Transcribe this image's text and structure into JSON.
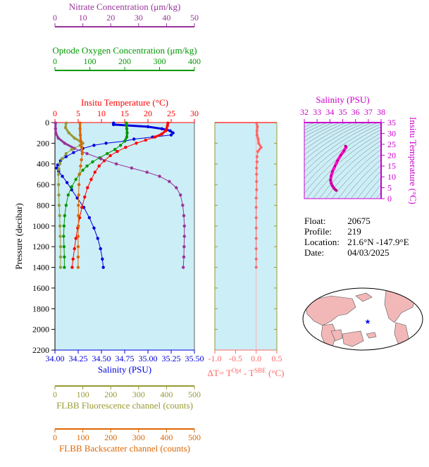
{
  "chart_data": [
    {
      "type": "line",
      "name": "profile",
      "ylabel": "Pressure (decibar)",
      "ylim": [
        2200,
        0
      ],
      "yticks": [
        0,
        200,
        400,
        600,
        800,
        1000,
        1200,
        1400,
        1600,
        1800,
        2000,
        2200
      ],
      "axes": {
        "salinity": {
          "label": "Salinity (PSU)",
          "range": [
            34.0,
            35.5
          ],
          "ticks": [
            "34.00",
            "34.25",
            "34.50",
            "34.75",
            "35.00",
            "35.25",
            "35.50"
          ],
          "tickvals": [
            34.0,
            34.25,
            34.5,
            34.75,
            35.0,
            35.25,
            35.5
          ],
          "color": "#0000dd"
        },
        "temperature": {
          "label": "Insitu Temperature (°C)",
          "range": [
            0,
            30
          ],
          "ticks": [
            "0",
            "5",
            "10",
            "15",
            "20",
            "25",
            "30"
          ],
          "tickvals": [
            0,
            5,
            10,
            15,
            20,
            25,
            30
          ],
          "color": "#ff0000"
        },
        "oxygen": {
          "label": "Optode Oxygen Concentration (μm/kg)",
          "range": [
            0,
            400
          ],
          "ticks": [
            "0",
            "100",
            "200",
            "300",
            "400"
          ],
          "tickvals": [
            0,
            100,
            200,
            300,
            400
          ],
          "color": "#009900"
        },
        "nitrate": {
          "label": "Nitrate Concentration (μm/kg)",
          "range": [
            0,
            50
          ],
          "ticks": [
            "0",
            "10",
            "20",
            "30",
            "40",
            "50"
          ],
          "tickvals": [
            0,
            10,
            20,
            30,
            40,
            50
          ],
          "color": "#993399"
        },
        "fluorescence": {
          "label": "FLBB Fluorescence channel (counts)",
          "range": [
            0,
            500
          ],
          "ticks": [
            "0",
            "100",
            "200",
            "300",
            "400",
            "500"
          ],
          "tickvals": [
            0,
            100,
            200,
            300,
            400,
            500
          ],
          "color": "#999933"
        },
        "backscatter": {
          "label": "FLBB Backscatter channel (counts)",
          "range": [
            0,
            500
          ],
          "ticks": [
            "0",
            "100",
            "200",
            "300",
            "400",
            "500"
          ],
          "tickvals": [
            0,
            100,
            200,
            300,
            400,
            500
          ],
          "color": "#dd6600"
        }
      },
      "series": [
        {
          "key": "salinity",
          "color": "#0000dd",
          "points": [
            [
              34.63,
              5
            ],
            [
              34.63,
              20
            ],
            [
              35.0,
              40
            ],
            [
              35.15,
              60
            ],
            [
              35.24,
              80
            ],
            [
              35.27,
              100
            ],
            [
              35.25,
              120
            ],
            [
              35.05,
              140
            ],
            [
              34.85,
              160
            ],
            [
              34.75,
              180
            ],
            [
              34.55,
              200
            ],
            [
              34.42,
              220
            ],
            [
              34.3,
              250
            ],
            [
              34.2,
              290
            ],
            [
              34.12,
              330
            ],
            [
              34.06,
              370
            ],
            [
              34.03,
              410
            ],
            [
              34.02,
              440
            ],
            [
              34.04,
              470
            ],
            [
              34.08,
              520
            ],
            [
              34.13,
              580
            ],
            [
              34.18,
              650
            ],
            [
              34.24,
              730
            ],
            [
              34.31,
              820
            ],
            [
              34.37,
              920
            ],
            [
              34.42,
              1020
            ],
            [
              34.46,
              1120
            ],
            [
              34.49,
              1220
            ],
            [
              34.51,
              1320
            ],
            [
              34.52,
              1400
            ]
          ]
        },
        {
          "key": "temperature",
          "color": "#ff0000",
          "points": [
            [
              24.3,
              5
            ],
            [
              24.2,
              30
            ],
            [
              24.0,
              60
            ],
            [
              23.8,
              80
            ],
            [
              23.0,
              110
            ],
            [
              21.5,
              140
            ],
            [
              19.5,
              170
            ],
            [
              17.5,
              200
            ],
            [
              15.2,
              240
            ],
            [
              13.4,
              280
            ],
            [
              11.9,
              320
            ],
            [
              10.6,
              370
            ],
            [
              9.5,
              420
            ],
            [
              8.6,
              480
            ],
            [
              7.8,
              550
            ],
            [
              7.0,
              630
            ],
            [
              6.4,
              720
            ],
            [
              5.8,
              820
            ],
            [
              5.3,
              920
            ],
            [
              4.9,
              1020
            ],
            [
              4.5,
              1120
            ],
            [
              4.2,
              1220
            ],
            [
              3.9,
              1320
            ],
            [
              3.7,
              1400
            ]
          ]
        },
        {
          "key": "oxygen",
          "color": "#009900",
          "points": [
            [
              205,
              5
            ],
            [
              205,
              30
            ],
            [
              206,
              60
            ],
            [
              207,
              100
            ],
            [
              206,
              140
            ],
            [
              200,
              180
            ],
            [
              188,
              220
            ],
            [
              172,
              260
            ],
            [
              150,
              300
            ],
            [
              128,
              340
            ],
            [
              108,
              380
            ],
            [
              92,
              420
            ],
            [
              80,
              460
            ],
            [
              70,
              500
            ],
            [
              60,
              550
            ],
            [
              48,
              620
            ],
            [
              38,
              700
            ],
            [
              32,
              800
            ],
            [
              28,
              900
            ],
            [
              26,
              1000
            ],
            [
              25,
              1100
            ],
            [
              26,
              1200
            ],
            [
              27,
              1300
            ],
            [
              27,
              1400
            ]
          ]
        },
        {
          "key": "nitrate",
          "color": "#993399",
          "points": [
            [
              0.2,
              5
            ],
            [
              0.2,
              60
            ],
            [
              0.3,
              100
            ],
            [
              1.2,
              150
            ],
            [
              3.5,
              200
            ],
            [
              7.0,
              250
            ],
            [
              11.5,
              300
            ],
            [
              16.5,
              350
            ],
            [
              22.0,
              400
            ],
            [
              27.5,
              440
            ],
            [
              33.0,
              480
            ],
            [
              37.5,
              520
            ],
            [
              41.0,
              570
            ],
            [
              43.5,
              630
            ],
            [
              45.0,
              700
            ],
            [
              45.8,
              800
            ],
            [
              46.2,
              900
            ],
            [
              46.4,
              1000
            ],
            [
              46.4,
              1100
            ],
            [
              46.3,
              1200
            ],
            [
              46.2,
              1300
            ],
            [
              46.0,
              1400
            ]
          ]
        },
        {
          "key": "fluorescence",
          "color": "#999933",
          "points": [
            [
              40,
              5
            ],
            [
              38,
              50
            ],
            [
              50,
              100
            ],
            [
              70,
              150
            ],
            [
              90,
              180
            ],
            [
              100,
              200
            ],
            [
              90,
              220
            ],
            [
              60,
              260
            ],
            [
              40,
              300
            ],
            [
              25,
              350
            ],
            [
              18,
              400
            ],
            [
              14,
              450
            ],
            [
              13,
              500
            ],
            [
              13,
              600
            ],
            [
              14,
              700
            ],
            [
              15,
              800
            ],
            [
              17,
              900
            ],
            [
              18,
              1000
            ],
            [
              19,
              1100
            ],
            [
              20,
              1200
            ],
            [
              20,
              1300
            ],
            [
              20,
              1400
            ]
          ]
        },
        {
          "key": "backscatter",
          "color": "#dd6600",
          "points": [
            [
              90,
              5
            ],
            [
              90,
              60
            ],
            [
              91,
              120
            ],
            [
              93,
              180
            ],
            [
              96,
              240
            ],
            [
              98,
              300
            ],
            [
              95,
              360
            ],
            [
              92,
              420
            ],
            [
              88,
              500
            ],
            [
              86,
              600
            ],
            [
              85,
              700
            ],
            [
              84,
              800
            ],
            [
              84,
              900
            ],
            [
              84,
              1000
            ],
            [
              83,
              1100
            ],
            [
              83,
              1200
            ],
            [
              83,
              1300
            ],
            [
              83,
              1400
            ]
          ]
        }
      ]
    },
    {
      "type": "scatter",
      "name": "delta-t",
      "xlabel": "ΔT= T^Opt - T^SBE (°C)",
      "xlim": [
        -1.0,
        0.5
      ],
      "xticks": [
        "-1.0",
        "-0.5",
        "0.0",
        "0.5"
      ],
      "xtickvals": [
        -1.0,
        -0.5,
        0.0,
        0.5
      ],
      "ylim": [
        2200,
        0
      ],
      "color": "#ff6666",
      "points": [
        [
          0.01,
          5
        ],
        [
          0.03,
          40
        ],
        [
          0.02,
          80
        ],
        [
          0.02,
          120
        ],
        [
          0.05,
          160
        ],
        [
          0.06,
          200
        ],
        [
          0.12,
          240
        ],
        [
          0.04,
          280
        ],
        [
          0.02,
          330
        ],
        [
          0.02,
          380
        ],
        [
          0.01,
          440
        ],
        [
          0.01,
          500
        ],
        [
          0.01,
          570
        ],
        [
          0.01,
          650
        ],
        [
          0.0,
          730
        ],
        [
          0.0,
          820
        ],
        [
          0.0,
          920
        ],
        [
          0.0,
          1020
        ],
        [
          0.0,
          1120
        ],
        [
          0.0,
          1220
        ],
        [
          0.0,
          1320
        ],
        [
          0.0,
          1400
        ]
      ]
    },
    {
      "type": "scatter",
      "name": "ts-diagram",
      "title": "Salinity (PSU)",
      "ylabel": "Insitu Temperature (°C)",
      "xlim": [
        32,
        38
      ],
      "xticks": [
        "32",
        "33",
        "34",
        "35",
        "36",
        "37",
        "38"
      ],
      "xtickvals": [
        32,
        33,
        34,
        35,
        36,
        37,
        38
      ],
      "ylim": [
        0,
        35
      ],
      "yticks": [
        "0",
        "5",
        "10",
        "15",
        "20",
        "25",
        "30",
        "35"
      ],
      "ytickvals": [
        0,
        5,
        10,
        15,
        20,
        25,
        30,
        35
      ],
      "color": "#ff00cc",
      "points": [
        [
          35.2,
          24.3
        ],
        [
          35.27,
          23.8
        ],
        [
          35.1,
          22.0
        ],
        [
          34.85,
          20.0
        ],
        [
          34.6,
          17.5
        ],
        [
          34.4,
          15.0
        ],
        [
          34.2,
          12.5
        ],
        [
          34.1,
          10.5
        ],
        [
          34.05,
          8.5
        ],
        [
          34.1,
          7.0
        ],
        [
          34.2,
          5.8
        ],
        [
          34.32,
          4.8
        ],
        [
          34.45,
          4.0
        ],
        [
          34.52,
          3.7
        ]
      ]
    }
  ],
  "float_info": {
    "float_label": "Float:",
    "float_value": "20675",
    "profile_label": "Profile:",
    "profile_value": "219",
    "location_label": "Location:",
    "location_value": "21.6°N  -147.9°E",
    "date_label": "Date:",
    "date_value": "04/03/2025"
  },
  "map": {
    "marker": "★",
    "marker_color": "#0000ff",
    "land_color": "#f2b8b8",
    "ocean_color": "#ffffff"
  }
}
